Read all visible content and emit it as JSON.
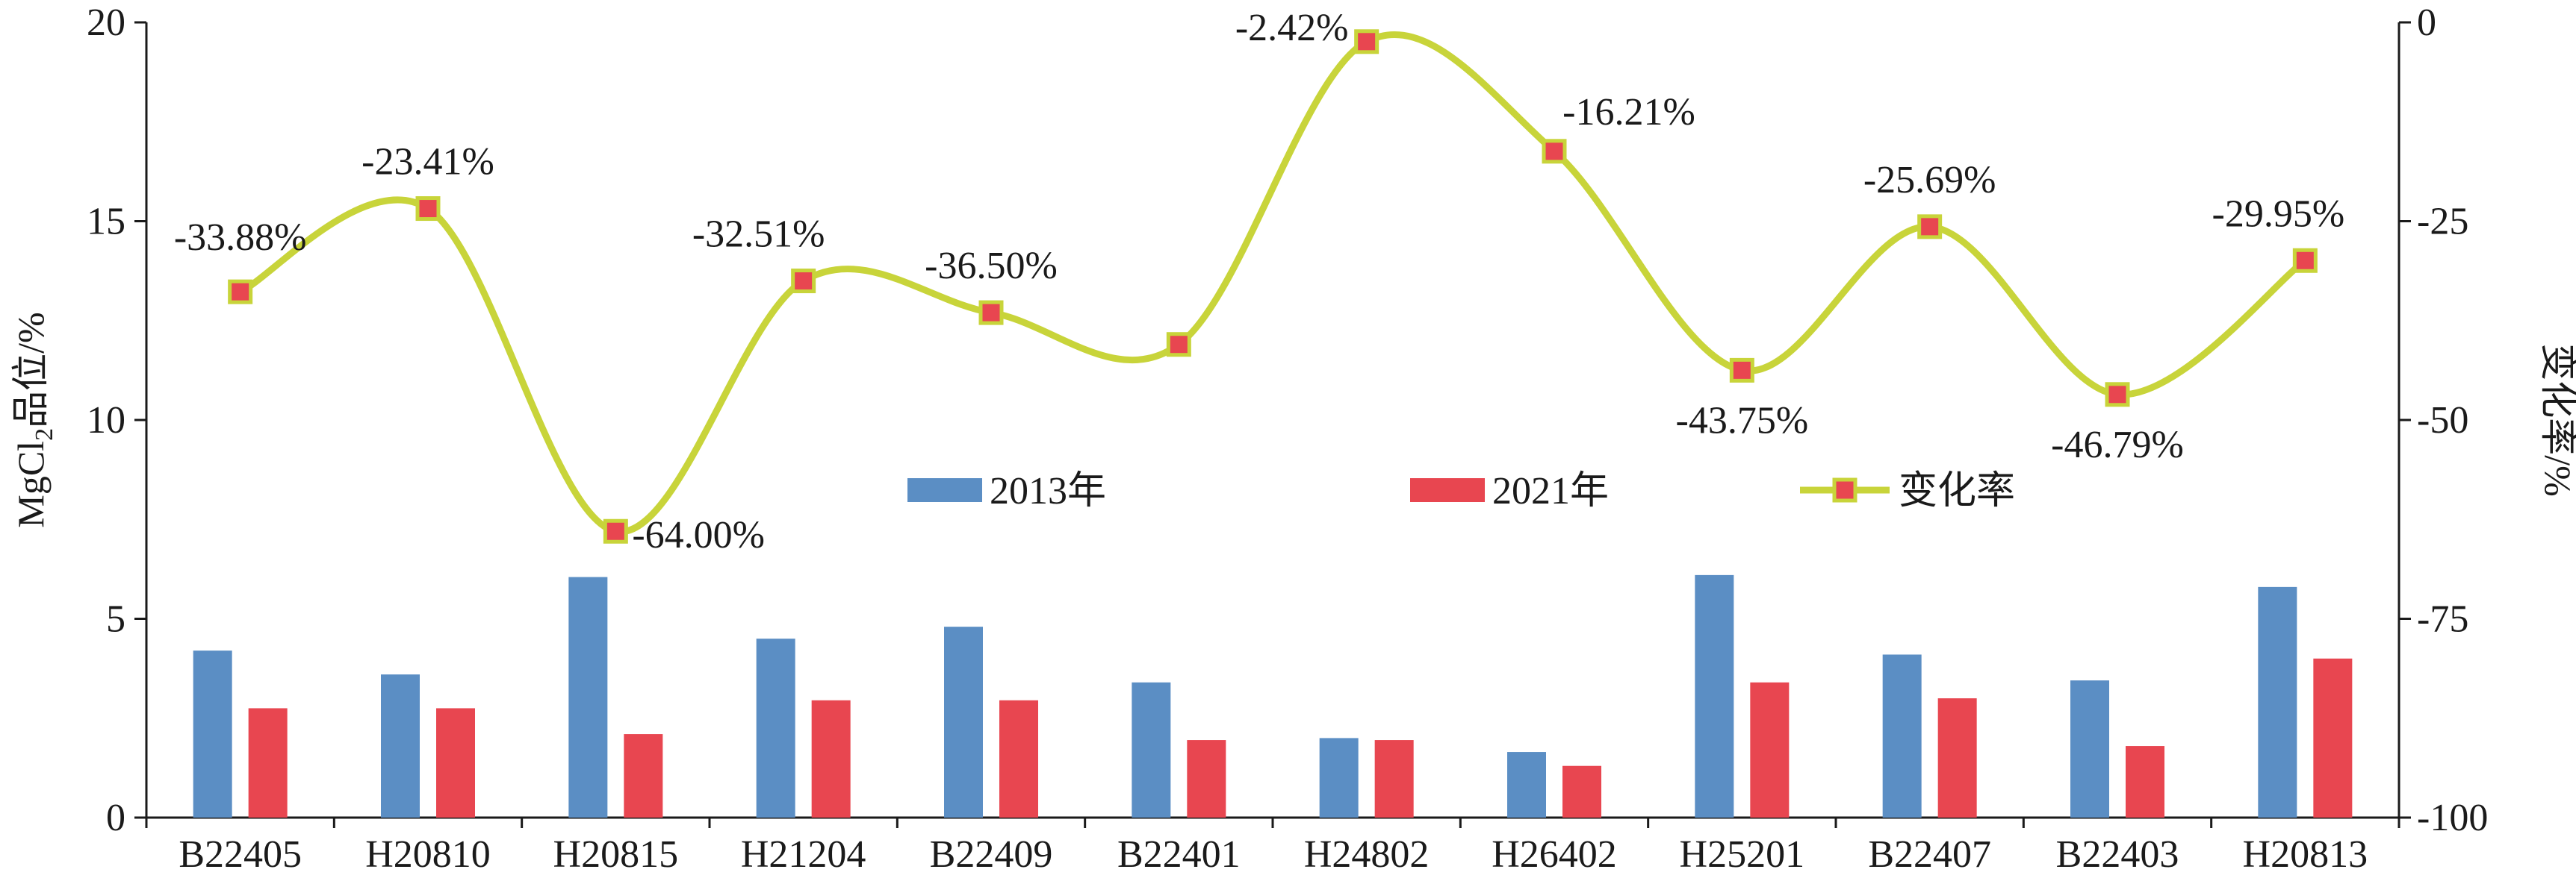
{
  "chart_data": {
    "type": "bar",
    "categories": [
      "B22405",
      "H20810",
      "H20815",
      "H21204",
      "B22409",
      "B22401",
      "H24802",
      "H26402",
      "H25201",
      "B22407",
      "B22403",
      "H20813"
    ],
    "series": [
      {
        "name": "2013年",
        "type": "bar",
        "axis": "left",
        "color": "#5b8ec4",
        "values": [
          4.2,
          3.6,
          6.05,
          4.5,
          4.8,
          3.4,
          2.0,
          1.65,
          6.1,
          4.1,
          3.45,
          5.8
        ]
      },
      {
        "name": "2021年",
        "type": "bar",
        "axis": "left",
        "color": "#e84650",
        "values": [
          2.75,
          2.75,
          2.1,
          2.95,
          2.95,
          1.95,
          1.95,
          1.3,
          3.4,
          3.0,
          1.8,
          4.0
        ]
      },
      {
        "name": "变化率",
        "type": "line",
        "axis": "right",
        "color": "#c8d43a",
        "marker_color": "#e84650",
        "values": [
          -33.88,
          -23.41,
          -64.0,
          -32.51,
          -36.5,
          -40.5,
          -2.42,
          -16.21,
          -43.75,
          -25.69,
          -46.79,
          -29.95
        ],
        "labels": [
          "-33.88%",
          "-23.41%",
          "-64.00%",
          "-32.51%",
          "-36.50%",
          "",
          "-2.42%",
          "-16.21%",
          "-43.75%",
          "-25.69%",
          "-46.79%",
          "-29.95%"
        ]
      }
    ],
    "ylabel_main": "MgCl",
    "ylabel_sub": "2",
    "ylabel_rest": "品位/%",
    "y2label": "变化率/%",
    "ylim": [
      0,
      20
    ],
    "yticks": [
      "0",
      "5",
      "10",
      "15",
      "20"
    ],
    "y2lim": [
      -100,
      0
    ],
    "y2ticks": [
      "-100",
      "-75",
      "-50",
      "-25",
      "0"
    ],
    "legend_position": "center",
    "grid": false
  }
}
